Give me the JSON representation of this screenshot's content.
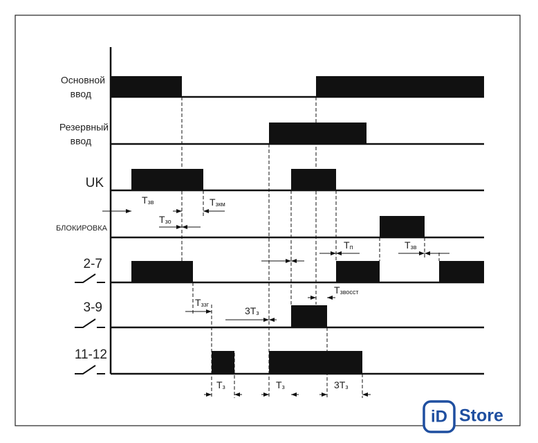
{
  "rows": [
    {
      "label": [
        "Основной",
        "ввод"
      ]
    },
    {
      "label": [
        "Резервный",
        "ввод"
      ]
    },
    {
      "label": [
        "UK"
      ]
    },
    {
      "label": [
        "БЛОКИРОВКА"
      ]
    },
    {
      "label": [
        "2-7"
      ]
    },
    {
      "label": [
        "3-9"
      ]
    },
    {
      "label": [
        "11-12"
      ]
    }
  ],
  "timings": [
    {
      "main": "Т",
      "sub": "зв"
    },
    {
      "main": "Т",
      "sub": "зкм"
    },
    {
      "main": "Т",
      "sub": "зо"
    },
    {
      "main": "Т",
      "sub": "п"
    },
    {
      "main": "Т",
      "sub": "зв"
    },
    {
      "main": "Т",
      "sub": "звосст"
    },
    {
      "main": "Т",
      "sub": "ззг"
    },
    {
      "main": "3Т",
      "sub": "з"
    },
    {
      "main": "Т",
      "sub": "з"
    },
    {
      "main": "Т",
      "sub": "з"
    },
    {
      "main": "3Т",
      "sub": "з"
    }
  ],
  "logo": {
    "mark": "iD",
    "text": "Store"
  }
}
